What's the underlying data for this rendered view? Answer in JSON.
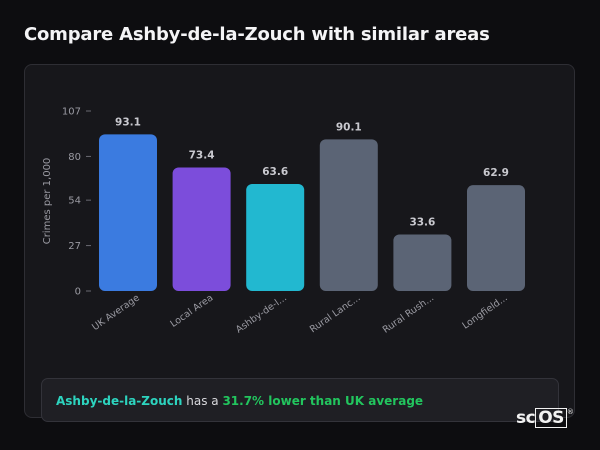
{
  "page": {
    "title": "Compare Ashby-de-la-Zouch with similar areas"
  },
  "chart_data": {
    "type": "bar",
    "title": "",
    "xlabel": "",
    "ylabel": "Crimes per 1,000",
    "ylim": [
      0,
      107
    ],
    "yticks": [
      0,
      27,
      54,
      80,
      107
    ],
    "grid": false,
    "categories": [
      "UK Average",
      "Local Area",
      "Ashby-de-l...",
      "Rural Lanc...",
      "Rural Rush...",
      "Longfield..."
    ],
    "values": [
      93.1,
      73.4,
      63.6,
      90.1,
      33.6,
      62.9
    ],
    "value_labels": [
      "93.1",
      "73.4",
      "63.6",
      "90.1",
      "33.6",
      "62.9"
    ],
    "colors": [
      "#3b7be0",
      "#7c4ddb",
      "#22b8d0",
      "#5b6475",
      "#5b6475",
      "#5b6475"
    ]
  },
  "summary": {
    "area": "Ashby-de-la-Zouch",
    "middle": " has a ",
    "delta": "31.7% lower than UK average"
  },
  "brand": {
    "prefix": "sc",
    "boxed": "OS",
    "mark": "®"
  },
  "colors": {
    "accent_teal": "#2dd4bf",
    "accent_green": "#22c55e"
  }
}
